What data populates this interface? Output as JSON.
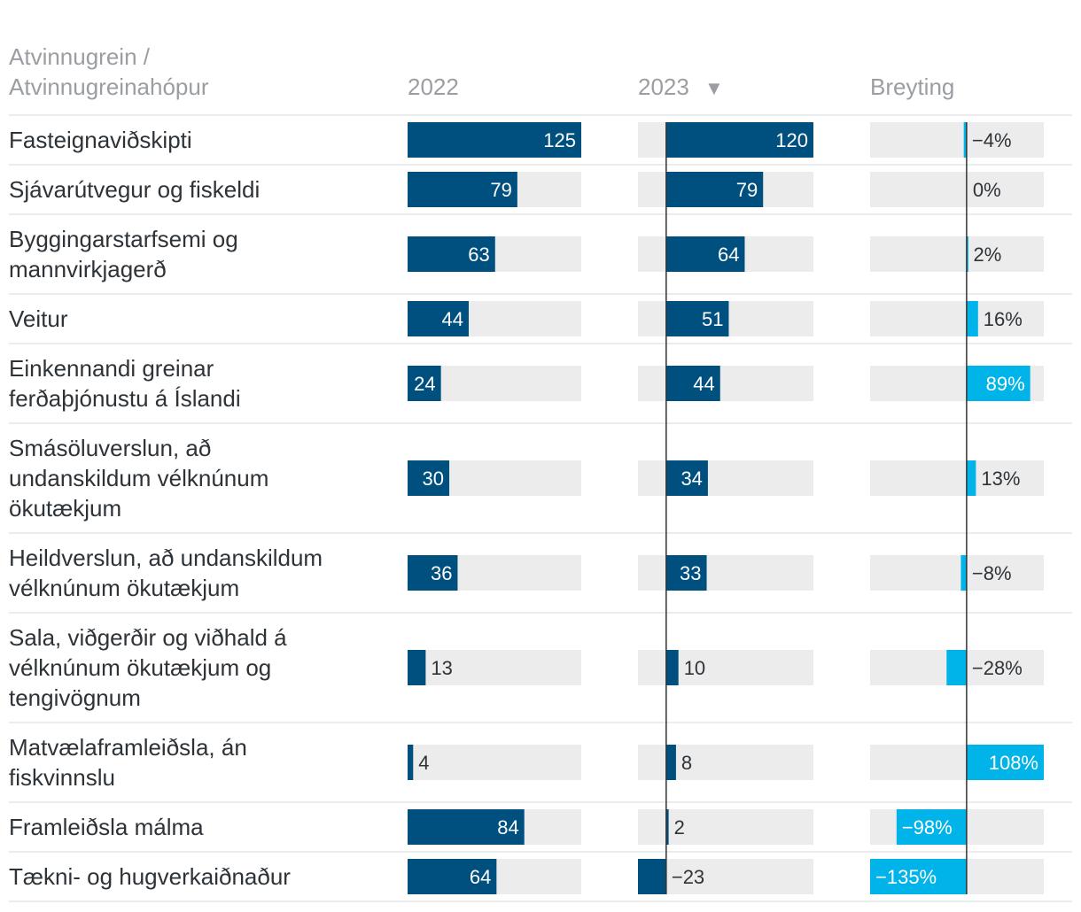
{
  "chart_data": {
    "type": "table",
    "columns": {
      "label_line1": "Atvinnugrein /",
      "label_line2": "Atvinnugreinahópur",
      "y2022": "2022",
      "y2023": "2023",
      "sort_indicator": "▼",
      "change": "Breyting"
    },
    "rows": [
      {
        "label": [
          "Fasteignaviðskipti"
        ],
        "v2022": 125,
        "v2023": 120,
        "change": -4,
        "t2022": "125",
        "t2023": "120",
        "tchange": "−4%"
      },
      {
        "label": [
          "Sjávarútvegur og fiskeldi"
        ],
        "v2022": 79,
        "v2023": 79,
        "change": 0,
        "t2022": "79",
        "t2023": "79",
        "tchange": "0%"
      },
      {
        "label": [
          "Byggingarstarfsemi og",
          "mannvirkjagerð"
        ],
        "v2022": 63,
        "v2023": 64,
        "change": 2,
        "t2022": "63",
        "t2023": "64",
        "tchange": "2%"
      },
      {
        "label": [
          "Veitur"
        ],
        "v2022": 44,
        "v2023": 51,
        "change": 16,
        "t2022": "44",
        "t2023": "51",
        "tchange": "16%"
      },
      {
        "label": [
          "Einkennandi greinar",
          "ferðaþjónustu á Íslandi"
        ],
        "v2022": 24,
        "v2023": 44,
        "change": 89,
        "t2022": "24",
        "t2023": "44",
        "tchange": "89%"
      },
      {
        "label": [
          "Smásöluverslun, að",
          "undanskildum vélknúnum",
          "ökutækjum"
        ],
        "v2022": 30,
        "v2023": 34,
        "change": 13,
        "t2022": "30",
        "t2023": "34",
        "tchange": "13%"
      },
      {
        "label": [
          "Heildverslun, að undanskildum",
          "vélknúnum ökutækjum"
        ],
        "v2022": 36,
        "v2023": 33,
        "change": -8,
        "t2022": "36",
        "t2023": "33",
        "tchange": "−8%"
      },
      {
        "label": [
          "Sala, viðgerðir og viðhald á",
          "vélknúnum ökutækjum og",
          "tengivögnum"
        ],
        "v2022": 13,
        "v2023": 10,
        "change": -28,
        "t2022": "13",
        "t2023": "10",
        "tchange": "−28%"
      },
      {
        "label": [
          "Matvælaframleiðsla, án",
          "fiskvinnslu"
        ],
        "v2022": 4,
        "v2023": 8,
        "change": 108,
        "t2022": "4",
        "t2023": "8",
        "tchange": "108%"
      },
      {
        "label": [
          "Framleiðsla málma"
        ],
        "v2022": 84,
        "v2023": 2,
        "change": -98,
        "t2022": "84",
        "t2023": "2",
        "tchange": "−98%"
      },
      {
        "label": [
          "Tækni- og hugverkaiðnaður"
        ],
        "v2022": 64,
        "v2023": -23,
        "change": -135,
        "t2022": "64",
        "t2023": "−23",
        "tchange": "−135%"
      }
    ],
    "scales": {
      "y2022": {
        "min": 0,
        "max": 125
      },
      "y2023": {
        "min": -23,
        "max": 120
      },
      "change": {
        "min": -135,
        "max": 108
      }
    },
    "colors": {
      "bar_dark": "#00507f",
      "bar_light": "#00b3e8",
      "track": "#ececec",
      "text_dark": "#2e3338",
      "text_header": "#9a9ea3",
      "text_on_bar": "#ffffff",
      "divider": "#e4e6e8",
      "zero_line": "#333333"
    }
  }
}
